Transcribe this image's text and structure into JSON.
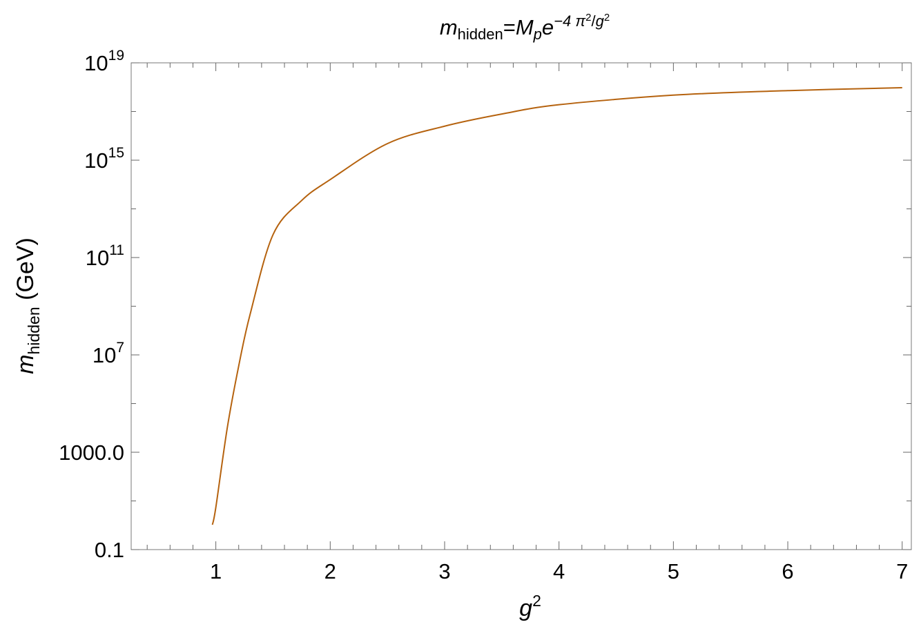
{
  "chart_data": {
    "type": "line",
    "title": [
      "m",
      "hidden",
      "=",
      "M",
      "p",
      "e",
      "−4 π",
      "2",
      "/",
      "g",
      "2"
    ],
    "x_label": [
      "g",
      "2"
    ],
    "y_label": [
      "m",
      "hidden",
      " (GeV)"
    ],
    "x": [
      0.97,
      1.0,
      1.1,
      1.2,
      1.3,
      1.5,
      1.75,
      2.0,
      2.5,
      3.0,
      3.5,
      4.0,
      5.0,
      6.0,
      7.0
    ],
    "values": [
      1.05,
      5.4,
      10000,
      3500000,
      470000000,
      870000000000,
      22000000000000,
      160000000000000,
      4800000000000000,
      25000000000000000,
      79000000000000000,
      190000000000000000,
      470000000000000000,
      720000000000000000,
      950000000000000000
    ],
    "color": "#b5620e",
    "xlim": [
      0.26,
      7.08
    ],
    "ylim": [
      0.1,
      10000000000000000000
    ],
    "y_scale": "log",
    "xticks": [
      1,
      2,
      3,
      4,
      5,
      6,
      7
    ],
    "xminor": [
      0.4,
      0.6,
      0.8,
      1.2,
      1.4,
      1.6,
      1.8,
      2.2,
      2.4,
      2.6,
      2.8,
      3.2,
      3.4,
      3.6,
      3.8,
      4.2,
      4.4,
      4.6,
      4.8,
      5.2,
      5.4,
      5.6,
      5.8,
      6.2,
      6.4,
      6.6,
      6.8
    ],
    "yticks": [
      0.1,
      {
        "value": 1000,
        "label": "1000.0"
      },
      {
        "value": 10000000,
        "label": "10",
        "sup": "7"
      },
      {
        "value": 100000000000,
        "label": "10",
        "sup": "11"
      },
      {
        "value": 1000000000000000,
        "label": "10",
        "sup": "15"
      },
      {
        "value": 10000000000000000000,
        "label": "10",
        "sup": "19"
      }
    ],
    "yminor": [
      10,
      100000,
      1000000000,
      10000000000000,
      100000000000000000
    ]
  }
}
